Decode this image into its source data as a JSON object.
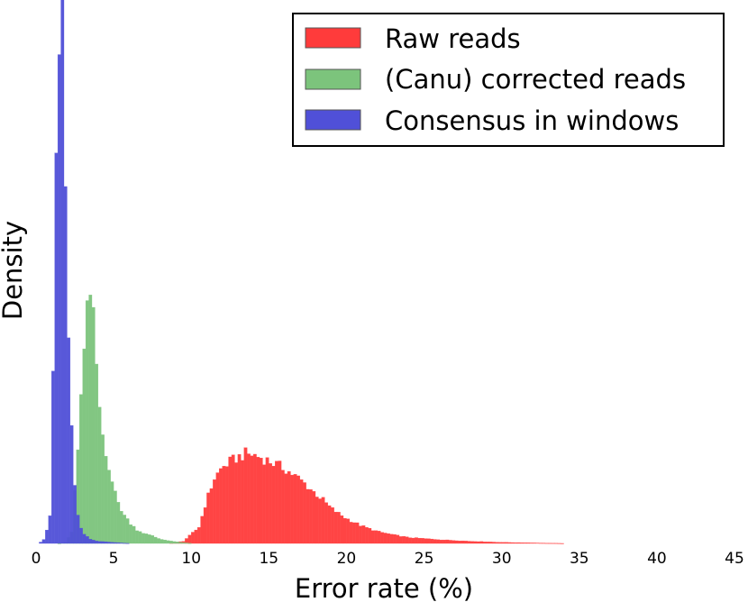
{
  "chart_data": {
    "type": "histogram",
    "title": "",
    "xlabel": "Error rate (%)",
    "ylabel": "Density",
    "xlim": [
      0,
      45
    ],
    "ylim": [
      0,
      1
    ],
    "x_ticks": [
      "0",
      "5",
      "10",
      "15",
      "20",
      "25",
      "30",
      "35",
      "40",
      "45"
    ],
    "y_ticks_shown": false,
    "grid": false,
    "legend_position": "top-right",
    "bin_width": 0.2,
    "series": [
      {
        "name": "Raw reads",
        "color": "#ff3b3b",
        "shape": {
          "points": [
            [
              8.5,
              0
            ],
            [
              9.5,
              0.004
            ],
            [
              10.5,
              0.03
            ],
            [
              11.0,
              0.08
            ],
            [
              11.5,
              0.12
            ],
            [
              12.0,
              0.14
            ],
            [
              12.5,
              0.15
            ],
            [
              13.0,
              0.158
            ],
            [
              13.5,
              0.165
            ],
            [
              14.0,
              0.163
            ],
            [
              14.5,
              0.158
            ],
            [
              15.0,
              0.152
            ],
            [
              15.5,
              0.145
            ],
            [
              16.0,
              0.138
            ],
            [
              16.5,
              0.128
            ],
            [
              17.0,
              0.118
            ],
            [
              17.5,
              0.105
            ],
            [
              18.0,
              0.092
            ],
            [
              18.5,
              0.08
            ],
            [
              19.0,
              0.065
            ],
            [
              19.5,
              0.055
            ],
            [
              20.0,
              0.046
            ],
            [
              21.0,
              0.032
            ],
            [
              22.0,
              0.022
            ],
            [
              23.0,
              0.016
            ],
            [
              24.0,
              0.011
            ],
            [
              26.0,
              0.007
            ],
            [
              28.0,
              0.004
            ],
            [
              30.0,
              0.002
            ],
            [
              32.0,
              0.001
            ],
            [
              34.0,
              0
            ]
          ]
        }
      },
      {
        "name": "(Canu) corrected reads",
        "color": "#7cc47c",
        "shape": {
          "points": [
            [
              1.5,
              0
            ],
            [
              1.9,
              0.002
            ],
            [
              2.3,
              0.02
            ],
            [
              2.6,
              0.13
            ],
            [
              2.8,
              0.23
            ],
            [
              3.0,
              0.3
            ],
            [
              3.2,
              0.4
            ],
            [
              3.5,
              0.46
            ],
            [
              3.7,
              0.41
            ],
            [
              3.9,
              0.33
            ],
            [
              4.1,
              0.25
            ],
            [
              4.3,
              0.2
            ],
            [
              4.5,
              0.17
            ],
            [
              4.8,
              0.13
            ],
            [
              5.0,
              0.1
            ],
            [
              5.3,
              0.075
            ],
            [
              5.6,
              0.056
            ],
            [
              6.0,
              0.04
            ],
            [
              6.5,
              0.025
            ],
            [
              7.0,
              0.018
            ],
            [
              7.5,
              0.014
            ],
            [
              8.0,
              0.008
            ],
            [
              9.0,
              0.003
            ],
            [
              10.0,
              0
            ]
          ]
        }
      },
      {
        "name": "Consensus in windows",
        "color": "#5050d8",
        "shape": {
          "points": [
            [
              0.2,
              0
            ],
            [
              0.6,
              0.01
            ],
            [
              0.9,
              0.05
            ],
            [
              1.0,
              0.15
            ],
            [
              1.1,
              0.3
            ],
            [
              1.2,
              0.5
            ],
            [
              1.3,
              0.7
            ],
            [
              1.4,
              0.85
            ],
            [
              1.5,
              0.95
            ],
            [
              1.6,
              1.0
            ],
            [
              1.7,
              0.98
            ],
            [
              1.8,
              0.88
            ],
            [
              1.9,
              0.7
            ],
            [
              2.0,
              0.5
            ],
            [
              2.2,
              0.28
            ],
            [
              2.4,
              0.14
            ],
            [
              2.6,
              0.07
            ],
            [
              2.8,
              0.04
            ],
            [
              3.0,
              0.02
            ],
            [
              3.5,
              0.008
            ],
            [
              4.0,
              0.004
            ],
            [
              5.0,
              0.002
            ],
            [
              6.0,
              0
            ]
          ]
        }
      }
    ]
  }
}
